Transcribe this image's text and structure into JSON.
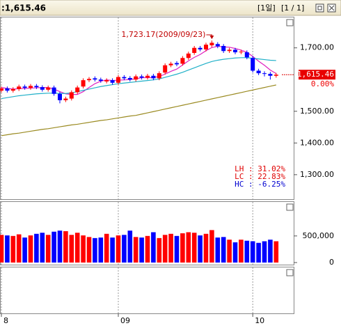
{
  "chart_data": [
    {
      "type": "candlestick",
      "title": ":1,615.46",
      "period_label": "[1일]",
      "page_label": "[1 / 1]",
      "categories": [
        "8",
        null,
        null,
        null,
        null,
        null,
        null,
        null,
        null,
        null,
        null,
        null,
        null,
        null,
        null,
        null,
        null,
        null,
        null,
        null,
        "09",
        null,
        null,
        null,
        null,
        null,
        null,
        null,
        null,
        null,
        null,
        null,
        null,
        null,
        null,
        null,
        null,
        null,
        null,
        null,
        null,
        null,
        null,
        "10",
        null,
        null,
        null,
        null
      ],
      "open": [
        1565,
        1572,
        1565,
        1570,
        1578,
        1574,
        1580,
        1576,
        1568,
        1575,
        1555,
        1535,
        1540,
        1560,
        1578,
        1598,
        1604,
        1600,
        1594,
        1598,
        1590,
        1608,
        1605,
        1600,
        1610,
        1606,
        1612,
        1604,
        1622,
        1645,
        1652,
        1650,
        1668,
        1684,
        1700,
        1695,
        1708,
        1712,
        1706,
        1690,
        1694,
        1686,
        1686,
        1668,
        1628,
        1620,
        1618,
        1612
      ],
      "high": [
        1578,
        1578,
        1576,
        1584,
        1584,
        1586,
        1586,
        1582,
        1581,
        1581,
        1561,
        1546,
        1566,
        1581,
        1604,
        1608,
        1610,
        1606,
        1604,
        1604,
        1614,
        1614,
        1611,
        1616,
        1616,
        1618,
        1618,
        1626,
        1651,
        1656,
        1658,
        1674,
        1688,
        1706,
        1706,
        1716,
        1723.17,
        1718,
        1712,
        1700,
        1700,
        1694,
        1692,
        1674,
        1634,
        1626,
        1624,
        1621
      ],
      "low": [
        1559,
        1559,
        1559,
        1564,
        1568,
        1568,
        1570,
        1562,
        1562,
        1549,
        1525,
        1529,
        1534,
        1554,
        1572,
        1592,
        1594,
        1590,
        1588,
        1584,
        1584,
        1598,
        1594,
        1594,
        1600,
        1600,
        1598,
        1598,
        1616,
        1639,
        1642,
        1644,
        1662,
        1678,
        1689,
        1689,
        1702,
        1699,
        1684,
        1684,
        1680,
        1680,
        1664,
        1622,
        1614,
        1610,
        1600,
        1606
      ],
      "close": [
        1572,
        1565,
        1570,
        1578,
        1574,
        1580,
        1576,
        1568,
        1575,
        1555,
        1535,
        1540,
        1560,
        1575,
        1598,
        1602,
        1600,
        1596,
        1598,
        1590,
        1608,
        1604,
        1600,
        1610,
        1606,
        1612,
        1604,
        1620,
        1645,
        1650,
        1648,
        1668,
        1682,
        1700,
        1695,
        1710,
        1716,
        1705,
        1690,
        1694,
        1686,
        1688,
        1670,
        1628,
        1620,
        1618,
        1612,
        1615.46
      ],
      "up_color": "#ff0000",
      "down_color": "#0000ff",
      "series": [
        {
          "color": "#e020c0",
          "values": [
            1575,
            1572,
            1570,
            1571,
            1572,
            1573,
            1574,
            1575,
            1575,
            1570,
            1562,
            1555,
            1553,
            1553,
            1562,
            1575,
            1587,
            1595,
            1599,
            1597,
            1598,
            1599,
            1600,
            1602,
            1606,
            1606,
            1606,
            1610,
            1617,
            1626,
            1633,
            1646,
            1659,
            1670,
            1679,
            1691,
            1701,
            1705,
            1703,
            1702,
            1698,
            1693,
            1686,
            1673,
            1658,
            1645,
            1630,
            1619
          ]
        },
        {
          "color": "#20b0c8",
          "values": [
            1540,
            1543,
            1546,
            1549,
            1551,
            1553,
            1555,
            1556,
            1557,
            1557,
            1556,
            1556,
            1558,
            1562,
            1566,
            1570,
            1574,
            1578,
            1581,
            1584,
            1587,
            1589,
            1591,
            1593,
            1595,
            1597,
            1599,
            1602,
            1607,
            1612,
            1617,
            1623,
            1630,
            1637,
            1644,
            1651,
            1657,
            1661,
            1664,
            1666,
            1668,
            1669,
            1669,
            1667,
            1665,
            1663,
            1661,
            1660
          ]
        },
        {
          "color": "#9a8a20",
          "values": [
            1423,
            1426,
            1429,
            1431,
            1434,
            1437,
            1440,
            1443,
            1445,
            1448,
            1451,
            1454,
            1457,
            1459,
            1462,
            1465,
            1468,
            1471,
            1473,
            1476,
            1479,
            1482,
            1485,
            1487,
            1491,
            1495,
            1499,
            1503,
            1507,
            1511,
            1515,
            1519,
            1523,
            1527,
            1531,
            1535,
            1539,
            1543,
            1547,
            1551,
            1555,
            1559,
            1563,
            1567,
            1571,
            1575,
            1579,
            1583
          ]
        }
      ],
      "ylim": [
        1225,
        1796
      ],
      "yticks": [
        {
          "value": 1300,
          "label": "1,300.00"
        },
        {
          "value": 1400,
          "label": "1,400.00"
        },
        {
          "value": 1500,
          "label": "1,500.00"
        },
        {
          "value": 1700,
          "label": "1,700.00"
        }
      ],
      "last_label": "1,615.46",
      "change_label": "0.00%",
      "annotation": "1,723.17(2009/09/23)",
      "stats": [
        "LH : 31.02%",
        "LC : 22.83%",
        "HC : -6.25%"
      ],
      "grid": true
    },
    {
      "type": "bar",
      "values": [
        520000,
        510000,
        500000,
        530000,
        470000,
        510000,
        540000,
        560000,
        520000,
        580000,
        600000,
        590000,
        520000,
        560000,
        510000,
        480000,
        460000,
        470000,
        540000,
        470000,
        510000,
        520000,
        600000,
        480000,
        470000,
        500000,
        570000,
        460000,
        520000,
        540000,
        500000,
        550000,
        570000,
        560000,
        510000,
        540000,
        610000,
        470000,
        480000,
        430000,
        380000,
        430000,
        410000,
        400000,
        370000,
        400000,
        430000,
        400000
      ],
      "ylim": [
        0,
        1100000
      ],
      "yticks": [
        0,
        {
          "value": 500000,
          "label": "500,000"
        }
      ]
    }
  ]
}
